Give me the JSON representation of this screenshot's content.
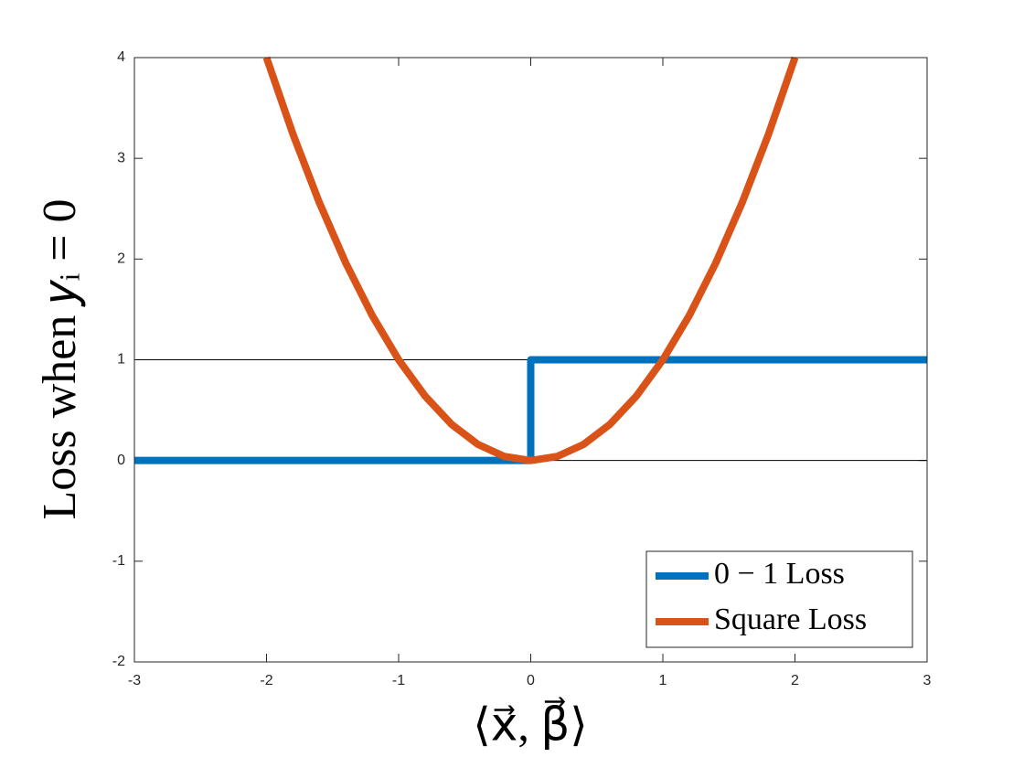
{
  "chart_data": {
    "type": "line",
    "xlabel": "⟨x⃗, β⃗⟩",
    "ylabel": "Loss when 𝑦ᵢ = 0",
    "xlim": [
      -3,
      3
    ],
    "xticks": [
      -3,
      -2,
      -1,
      0,
      1,
      2,
      3
    ],
    "ylim": [
      -2,
      4
    ],
    "yticks": [
      -2,
      -1,
      0,
      1,
      2,
      3,
      4
    ],
    "hlines": [
      0,
      1
    ],
    "legend": "lower right",
    "series": [
      {
        "name": "0 − 1 Loss",
        "color": "#0072bd",
        "x": [
          -3,
          0,
          0,
          3
        ],
        "values": [
          0,
          0,
          1,
          1
        ]
      },
      {
        "name": "Square Loss",
        "color": "#d95319",
        "x": [
          -2,
          -1.8,
          -1.6,
          -1.4,
          -1.2,
          -1,
          -0.8,
          -0.6,
          -0.4,
          -0.2,
          0,
          0.2,
          0.4,
          0.6,
          0.8,
          1,
          1.2,
          1.4,
          1.6,
          1.8,
          2
        ],
        "values": [
          4,
          3.24,
          2.56,
          1.96,
          1.44,
          1,
          0.64,
          0.36,
          0.16,
          0.04,
          0,
          0.04,
          0.16,
          0.36,
          0.64,
          1,
          1.44,
          1.96,
          2.56,
          3.24,
          4
        ]
      }
    ]
  }
}
